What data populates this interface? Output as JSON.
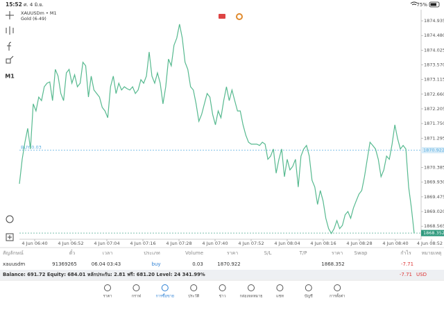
{
  "status_bar": {
    "time": "15:52",
    "date": "ศ. 4 มิ.ย.",
    "battery": "75%"
  },
  "toolbar": {
    "timeframe": "M1"
  },
  "chart_data": {
    "type": "line",
    "title": "XAUUSDm • M1",
    "subtitle": "Gold (6-49)",
    "x_axis_labels": [
      "4 Jun 06:40",
      "4 Jun 06:52",
      "4 Jun 07:04",
      "4 Jun 07:16",
      "4 Jun 07:28",
      "4 Jun 07:40",
      "4 Jun 07:52",
      "4 Jun 08:04",
      "4 Jun 08:16",
      "4 Jun 08:28",
      "4 Jun 08:40",
      "4 Jun 08:52"
    ],
    "series": [
      {
        "color": "#56b98f",
        "values": [
          1869.88,
          1870.64,
          1871.17,
          1871.6,
          1870.96,
          1872.36,
          1872.14,
          1872.57,
          1872.46,
          1872.89,
          1873.0,
          1873.04,
          1872.46,
          1873.43,
          1873.22,
          1872.68,
          1872.46,
          1873.32,
          1873.43,
          1873.0,
          1873.26,
          1872.89,
          1873.0,
          1873.65,
          1873.54,
          1872.57,
          1873.22,
          1872.79,
          1872.68,
          1872.57,
          1872.25,
          1872.14,
          1871.93,
          1872.89,
          1873.22,
          1872.68,
          1873.0,
          1872.79,
          1872.89,
          1872.83,
          1872.79,
          1872.89,
          1872.68,
          1872.79,
          1873.11,
          1873.0,
          1873.22,
          1873.97,
          1873.22,
          1873.0,
          1873.32,
          1873.0,
          1872.36,
          1872.89,
          1873.75,
          1873.54,
          1874.18,
          1874.4,
          1874.83,
          1874.4,
          1873.65,
          1873.43,
          1872.89,
          1872.79,
          1872.36,
          1871.82,
          1872.03,
          1872.36,
          1872.68,
          1872.57,
          1872.03,
          1871.71,
          1872.14,
          1871.93,
          1872.46,
          1872.89,
          1872.46,
          1872.79,
          1872.46,
          1872.14,
          1872.14,
          1871.71,
          1871.39,
          1871.17,
          1871.11,
          1871.11,
          1871.11,
          1871.07,
          1871.17,
          1871.11,
          1870.64,
          1870.74,
          1870.96,
          1870.21,
          1870.64,
          1870.96,
          1870.1,
          1870.64,
          1870.31,
          1870.42,
          1870.64,
          1869.78,
          1870.74,
          1870.96,
          1871.07,
          1870.74,
          1869.99,
          1869.78,
          1869.24,
          1869.67,
          1869.35,
          1868.81,
          1868.49,
          1868.34,
          1868.49,
          1868.74,
          1868.49,
          1868.59,
          1868.92,
          1869.02,
          1868.81,
          1869.13,
          1869.35,
          1869.56,
          1869.67,
          1870.1,
          1870.64,
          1871.17,
          1871.07,
          1870.96,
          1870.64,
          1870.1,
          1870.31,
          1870.74,
          1870.64,
          1871.11,
          1871.71,
          1871.28,
          1870.96,
          1871.07,
          1870.96,
          1869.78,
          1869.13,
          1868.35
        ]
      }
    ],
    "ylim": [
      1868.16,
      1875.28
    ],
    "yticks": [
      1874.935,
      {
        "value": 1874.48,
        "label": "1874.480"
      },
      1874.025,
      {
        "value": 1873.57,
        "label": "1873.570"
      },
      1873.115,
      {
        "value": 1872.66,
        "label": "1872.660"
      },
      1872.205,
      {
        "value": 1871.75,
        "label": "1871.750"
      },
      1871.295,
      1870.385,
      {
        "value": 1869.93,
        "label": "1869.930"
      },
      1869.475,
      {
        "value": 1869.02,
        "label": "1869.020"
      },
      1868.565
    ],
    "price_lines": [
      {
        "label": "BUY 0.03",
        "value": 1870.922,
        "color": "#5aaee0"
      },
      {
        "value": 1868.352,
        "color": "#2f9a7e"
      }
    ]
  },
  "positions": {
    "headers": [
      "สัญลักษณ์",
      "ตั๋ว",
      "เวลา",
      "ประเภท",
      "Volume",
      "ราคา",
      "S/L",
      "T/P",
      "ราคา",
      "Swap",
      "กำไร",
      "หมายเหตุ"
    ],
    "rows": [
      {
        "symbol": "xauusdm",
        "ticket": "91369265",
        "time": "06.04 03:43",
        "type": "buy",
        "volume": "0.03",
        "open_price": "1870.922",
        "price": "1868.352",
        "profit": "-7.71"
      }
    ]
  },
  "summary": {
    "account": "Balance: 691.72 Equity: 684.01 หลักประกัน: 2.81 ฟรี: 681.20 Level: 24 341.99%",
    "profit": "-7.71",
    "currency": "USD"
  },
  "tabs": [
    "ราคา",
    "กราฟ",
    "การซื้อขาย",
    "ประวัติ",
    "ข่าว",
    "กล่องจดหมาย",
    "แชท",
    "บัญชี",
    "การตั้งค่า"
  ]
}
